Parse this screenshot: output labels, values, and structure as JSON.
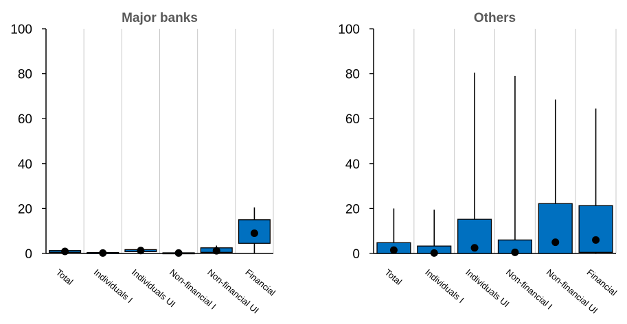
{
  "chart_data": [
    {
      "type": "box",
      "title": "Major banks",
      "categories": [
        "Total",
        "Individuals I",
        "Individuals UI",
        "Non-financial I",
        "Non-financial UI",
        "Financial"
      ],
      "series": [
        {
          "values": [
            {
              "min": 0.5,
              "q1": 0.5,
              "q3": 1.3,
              "max": 1.3,
              "mean": 0.9
            },
            {
              "min": 0.1,
              "q1": 0.1,
              "q3": 0.4,
              "max": 0.4,
              "mean": 0.2
            },
            {
              "min": 0.8,
              "q1": 0.8,
              "q3": 1.7,
              "max": 1.7,
              "mean": 1.3
            },
            {
              "min": 0.1,
              "q1": 0.1,
              "q3": 0.3,
              "max": 0.3,
              "mean": 0.2
            },
            {
              "min": 0.1,
              "q1": 0.5,
              "q3": 2.5,
              "max": 3.5,
              "mean": 1.2
            },
            {
              "min": 0.0,
              "q1": 4.5,
              "q3": 15.0,
              "max": 20.5,
              "mean": 9.0
            }
          ]
        }
      ],
      "ylim": [
        0,
        100
      ],
      "yticks": [
        "0",
        "20",
        "40",
        "60",
        "80",
        "100"
      ],
      "grid": "vertical",
      "colors": {
        "box_fill": "#0070C0",
        "grid": "#C8C8C8"
      }
    },
    {
      "type": "box",
      "title": "Others",
      "categories": [
        "Total",
        "Individuals I",
        "Individuals UI",
        "Non-financial I",
        "Non-financial UI",
        "Financial"
      ],
      "series": [
        {
          "values": [
            {
              "min": 0.0,
              "q1": 0.0,
              "q3": 4.8,
              "max": 20.0,
              "mean": 1.5
            },
            {
              "min": 0.0,
              "q1": 0.0,
              "q3": 3.3,
              "max": 19.5,
              "mean": 0.2
            },
            {
              "min": 0.0,
              "q1": 0.0,
              "q3": 15.2,
              "max": 80.5,
              "mean": 2.5
            },
            {
              "min": 0.0,
              "q1": 0.0,
              "q3": 6.0,
              "max": 79.0,
              "mean": 0.5
            },
            {
              "min": 0.0,
              "q1": 0.0,
              "q3": 22.2,
              "max": 68.5,
              "mean": 5.0
            },
            {
              "min": 0.0,
              "q1": 0.5,
              "q3": 21.3,
              "max": 64.5,
              "mean": 6.0
            }
          ]
        }
      ],
      "ylim": [
        0,
        100
      ],
      "yticks": [
        "0",
        "20",
        "40",
        "60",
        "80",
        "100"
      ],
      "grid": "vertical",
      "colors": {
        "box_fill": "#0070C0",
        "grid": "#C8C8C8"
      }
    }
  ]
}
